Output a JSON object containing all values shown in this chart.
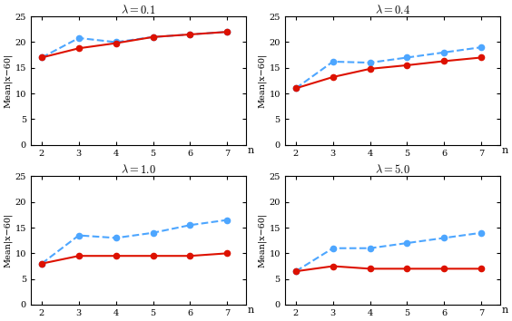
{
  "n_values": [
    2,
    3,
    4,
    5,
    6,
    7
  ],
  "subplots": [
    {
      "title": "$\\lambda = 0.1$",
      "blue_dashed": [
        17.0,
        20.8,
        20.0,
        21.0,
        21.5,
        22.0
      ],
      "red_solid": [
        17.0,
        18.8,
        19.8,
        21.0,
        21.5,
        22.0
      ]
    },
    {
      "title": "$\\lambda = 0.4$",
      "blue_dashed": [
        11.0,
        16.2,
        16.0,
        17.0,
        18.0,
        19.0
      ],
      "red_solid": [
        11.0,
        13.2,
        14.8,
        15.5,
        16.3,
        17.0
      ]
    },
    {
      "title": "$\\lambda = 1.0$",
      "blue_dashed": [
        8.0,
        13.5,
        13.0,
        14.0,
        15.5,
        16.5
      ],
      "red_solid": [
        8.0,
        9.5,
        9.5,
        9.5,
        9.5,
        10.0
      ]
    },
    {
      "title": "$\\lambda = 5.0$",
      "blue_dashed": [
        6.5,
        11.0,
        11.0,
        12.0,
        13.0,
        14.0
      ],
      "red_solid": [
        6.5,
        7.5,
        7.0,
        7.0,
        7.0,
        7.0
      ]
    }
  ],
  "ylabel": "Mean|x−60|",
  "xlabel": "n",
  "ylim": [
    0,
    25
  ],
  "yticks": [
    0,
    5,
    10,
    15,
    20,
    25
  ],
  "blue_color": "#4da6ff",
  "red_color": "#dd1100",
  "marker_size": 4.5,
  "line_width": 1.5
}
